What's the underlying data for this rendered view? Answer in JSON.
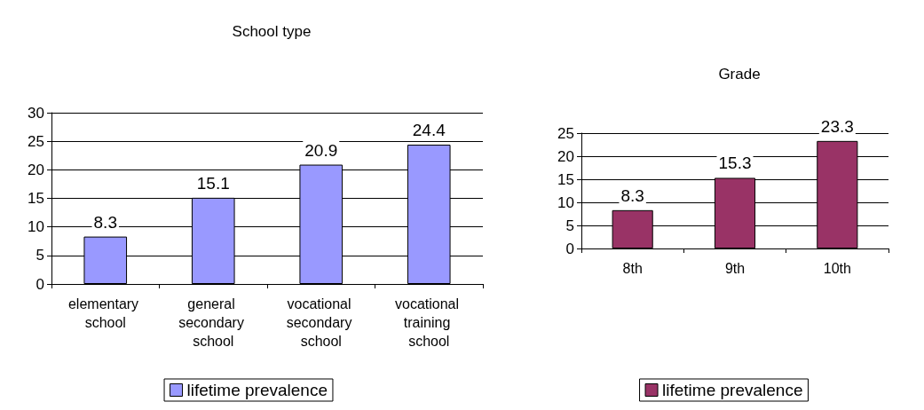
{
  "chart_data": [
    {
      "type": "bar",
      "title": "School type",
      "categories": [
        "elementary school",
        "general secondary school",
        "vocational secondary school",
        "vocational training school"
      ],
      "series": [
        {
          "name": "lifetime prevalence",
          "color": "#9999ff",
          "values": [
            8.3,
            15.1,
            20.9,
            24.4
          ]
        }
      ],
      "ylim": [
        0,
        30
      ],
      "yticks": [
        0,
        5,
        10,
        15,
        20,
        25,
        30
      ],
      "grid": "y",
      "legend": "bottom",
      "data_labels": true
    },
    {
      "type": "bar",
      "title": "Grade",
      "categories": [
        "8th",
        "9th",
        "10th"
      ],
      "series": [
        {
          "name": "lifetime prevalence",
          "color": "#993366",
          "values": [
            8.3,
            15.3,
            23.3
          ]
        }
      ],
      "ylim": [
        0,
        25
      ],
      "yticks": [
        0,
        5,
        10,
        15,
        20,
        25
      ],
      "grid": "y",
      "legend": "bottom",
      "data_labels": true
    }
  ]
}
